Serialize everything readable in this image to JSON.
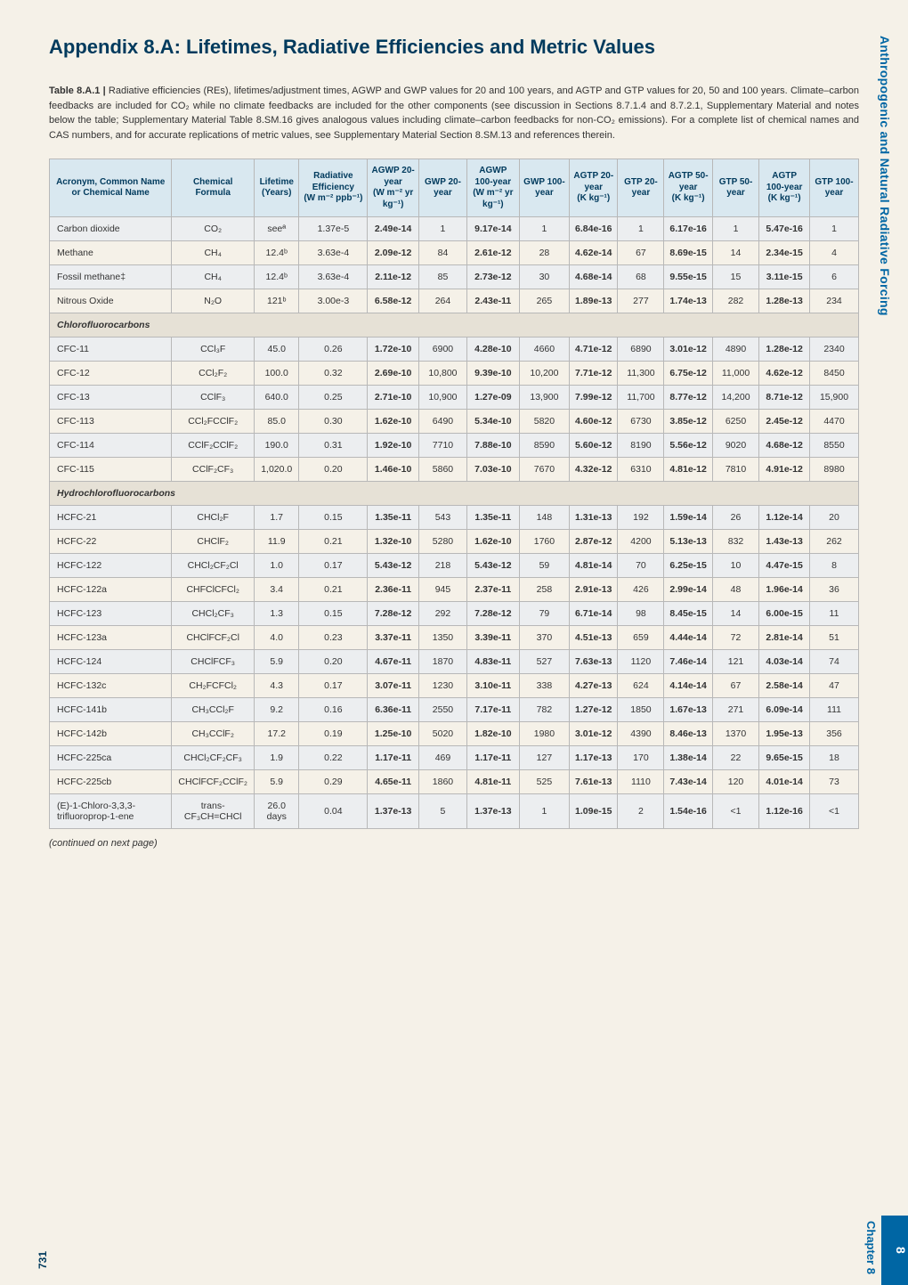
{
  "side_label": "Anthropogenic and Natural Radiative Forcing",
  "title": "Appendix 8.A: Lifetimes, Radiative Efficiencies and Metric Values",
  "caption_bold": "Table 8.A.1 |",
  "caption_text": " Radiative efficiencies (REs), lifetimes/adjustment times, AGWP and GWP values for 20 and 100 years, and AGTP and GTP values for 20, 50 and 100 years. Climate–carbon feedbacks are included for CO₂ while no climate feedbacks are included for the other components (see discussion in Sections 8.7.1.4 and 8.7.2.1, Supplementary Material and notes below the table; Supplementary Material Table 8.SM.16 gives analogous values including climate–carbon feedbacks for non-CO₂ emissions). For a complete list of chemical names and CAS numbers, and for accurate replications of metric values, see Supplementary Material Section 8.SM.13 and references therein.",
  "headers": [
    "Acronym, Common Name or Chemi­cal Name",
    "Chemical Formula",
    "Lifetime (Years)",
    "Radiative Efficiency (W m⁻² ppb⁻¹)",
    "AGWP 20-year (W m⁻² yr kg⁻¹)",
    "GWP 20-year",
    "AGWP 100-year (W m⁻² yr kg⁻¹)",
    "GWP 100-year",
    "AGTP 20-year (K kg⁻¹)",
    "GTP 20-year",
    "AGTP 50-year (K kg⁻¹)",
    "GTP 50-year",
    "AGTP 100-year (K kg⁻¹)",
    "GTP 100-year"
  ],
  "rows": [
    {
      "shade": true,
      "c": [
        "Carbon dioxide",
        "CO₂",
        "seeª",
        "1.37e-5",
        "2.49e-14",
        "1",
        "9.17e-14",
        "1",
        "6.84e-16",
        "1",
        "6.17e-16",
        "1",
        "5.47e-16",
        "1"
      ]
    },
    {
      "c": [
        "Methane",
        "CH₄",
        "12.4ᵇ",
        "3.63e-4",
        "2.09e-12",
        "84",
        "2.61e-12",
        "28",
        "4.62e-14",
        "67",
        "8.69e-15",
        "14",
        "2.34e-15",
        "4"
      ]
    },
    {
      "shade": true,
      "c": [
        "Fossil methane‡",
        "CH₄",
        "12.4ᵇ",
        "3.63e-4",
        "2.11e-12",
        "85",
        "2.73e-12",
        "30",
        "4.68e-14",
        "68",
        "9.55e-15",
        "15",
        "3.11e-15",
        "6"
      ]
    },
    {
      "c": [
        "Nitrous Oxide",
        "N₂O",
        "121ᵇ",
        "3.00e-3",
        "6.58e-12",
        "264",
        "2.43e-11",
        "265",
        "1.89e-13",
        "277",
        "1.74e-13",
        "282",
        "1.28e-13",
        "234"
      ]
    }
  ],
  "section1": "Chlorofluorocarbons",
  "rows2": [
    {
      "shade": true,
      "c": [
        "CFC-11",
        "CCl₃F",
        "45.0",
        "0.26",
        "1.72e-10",
        "6900",
        "4.28e-10",
        "4660",
        "4.71e-12",
        "6890",
        "3.01e-12",
        "4890",
        "1.28e-12",
        "2340"
      ]
    },
    {
      "c": [
        "CFC-12",
        "CCl₂F₂",
        "100.0",
        "0.32",
        "2.69e-10",
        "10,800",
        "9.39e-10",
        "10,200",
        "7.71e-12",
        "11,300",
        "6.75e-12",
        "11,000",
        "4.62e-12",
        "8450"
      ]
    },
    {
      "shade": true,
      "c": [
        "CFC-13",
        "CClF₃",
        "640.0",
        "0.25",
        "2.71e-10",
        "10,900",
        "1.27e-09",
        "13,900",
        "7.99e-12",
        "11,700",
        "8.77e-12",
        "14,200",
        "8.71e-12",
        "15,900"
      ]
    },
    {
      "c": [
        "CFC-113",
        "CCl₂FCClF₂",
        "85.0",
        "0.30",
        "1.62e-10",
        "6490",
        "5.34e-10",
        "5820",
        "4.60e-12",
        "6730",
        "3.85e-12",
        "6250",
        "2.45e-12",
        "4470"
      ]
    },
    {
      "shade": true,
      "c": [
        "CFC-114",
        "CClF₂CClF₂",
        "190.0",
        "0.31",
        "1.92e-10",
        "7710",
        "7.88e-10",
        "8590",
        "5.60e-12",
        "8190",
        "5.56e-12",
        "9020",
        "4.68e-12",
        "8550"
      ]
    },
    {
      "c": [
        "CFC-115",
        "CClF₂CF₃",
        "1,020.0",
        "0.20",
        "1.46e-10",
        "5860",
        "7.03e-10",
        "7670",
        "4.32e-12",
        "6310",
        "4.81e-12",
        "7810",
        "4.91e-12",
        "8980"
      ]
    }
  ],
  "section2": "Hydrochlorofluorocarbons",
  "rows3": [
    {
      "shade": true,
      "c": [
        "HCFC-21",
        "CHCl₂F",
        "1.7",
        "0.15",
        "1.35e-11",
        "543",
        "1.35e-11",
        "148",
        "1.31e-13",
        "192",
        "1.59e-14",
        "26",
        "1.12e-14",
        "20"
      ]
    },
    {
      "c": [
        "HCFC-22",
        "CHClF₂",
        "11.9",
        "0.21",
        "1.32e-10",
        "5280",
        "1.62e-10",
        "1760",
        "2.87e-12",
        "4200",
        "5.13e-13",
        "832",
        "1.43e-13",
        "262"
      ]
    },
    {
      "shade": true,
      "c": [
        "HCFC-122",
        "CHCl₂CF₂Cl",
        "1.0",
        "0.17",
        "5.43e-12",
        "218",
        "5.43e-12",
        "59",
        "4.81e-14",
        "70",
        "6.25e-15",
        "10",
        "4.47e-15",
        "8"
      ]
    },
    {
      "c": [
        "HCFC-122a",
        "CHFClCFCl₂",
        "3.4",
        "0.21",
        "2.36e-11",
        "945",
        "2.37e-11",
        "258",
        "2.91e-13",
        "426",
        "2.99e-14",
        "48",
        "1.96e-14",
        "36"
      ]
    },
    {
      "shade": true,
      "c": [
        "HCFC-123",
        "CHCl₂CF₃",
        "1.3",
        "0.15",
        "7.28e-12",
        "292",
        "7.28e-12",
        "79",
        "6.71e-14",
        "98",
        "8.45e-15",
        "14",
        "6.00e-15",
        "11"
      ]
    },
    {
      "c": [
        "HCFC-123a",
        "CHClFCF₂Cl",
        "4.0",
        "0.23",
        "3.37e-11",
        "1350",
        "3.39e-11",
        "370",
        "4.51e-13",
        "659",
        "4.44e-14",
        "72",
        "2.81e-14",
        "51"
      ]
    },
    {
      "shade": true,
      "c": [
        "HCFC-124",
        "CHClFCF₃",
        "5.9",
        "0.20",
        "4.67e-11",
        "1870",
        "4.83e-11",
        "527",
        "7.63e-13",
        "1120",
        "7.46e-14",
        "121",
        "4.03e-14",
        "74"
      ]
    },
    {
      "c": [
        "HCFC-132c",
        "CH₂FCFCl₂",
        "4.3",
        "0.17",
        "3.07e-11",
        "1230",
        "3.10e-11",
        "338",
        "4.27e-13",
        "624",
        "4.14e-14",
        "67",
        "2.58e-14",
        "47"
      ]
    },
    {
      "shade": true,
      "c": [
        "HCFC-141b",
        "CH₃CCl₂F",
        "9.2",
        "0.16",
        "6.36e-11",
        "2550",
        "7.17e-11",
        "782",
        "1.27e-12",
        "1850",
        "1.67e-13",
        "271",
        "6.09e-14",
        "111"
      ]
    },
    {
      "c": [
        "HCFC-142b",
        "CH₃CClF₂",
        "17.2",
        "0.19",
        "1.25e-10",
        "5020",
        "1.82e-10",
        "1980",
        "3.01e-12",
        "4390",
        "8.46e-13",
        "1370",
        "1.95e-13",
        "356"
      ]
    },
    {
      "shade": true,
      "c": [
        "HCFC-225ca",
        "CHCl₂CF₂CF₃",
        "1.9",
        "0.22",
        "1.17e-11",
        "469",
        "1.17e-11",
        "127",
        "1.17e-13",
        "170",
        "1.38e-14",
        "22",
        "9.65e-15",
        "18"
      ]
    },
    {
      "c": [
        "HCFC-225cb",
        "CHClFCF₂CClF₂",
        "5.9",
        "0.29",
        "4.65e-11",
        "1860",
        "4.81e-11",
        "525",
        "7.61e-13",
        "1110",
        "7.43e-14",
        "120",
        "4.01e-14",
        "73"
      ]
    },
    {
      "shade": true,
      "c": [
        "(E)-1-Chloro-3,3,3-trifluoroprop-1-ene",
        "trans-CF₃CH=CHCl",
        "26.0 days",
        "0.04",
        "1.37e-13",
        "5",
        "1.37e-13",
        "1",
        "1.09e-15",
        "2",
        "1.54e-16",
        "<1",
        "1.12e-16",
        "<1"
      ]
    }
  ],
  "continued": "(continued on next page)",
  "chapter_label": "Chapter 8",
  "chapter_num": "8",
  "page_number": "731"
}
